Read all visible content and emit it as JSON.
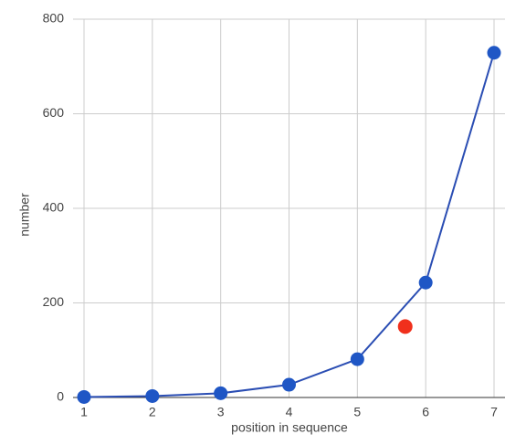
{
  "chart_data": {
    "type": "line",
    "x_label": "position in sequence",
    "y_label": "number",
    "x": [
      1,
      2,
      3,
      4,
      5,
      6,
      7
    ],
    "series": [
      {
        "color": "#1f56c5",
        "values": [
          1,
          3,
          9,
          27,
          81,
          243,
          729
        ]
      },
      {
        "color": "#f0301c",
        "x": [
          5.7
        ],
        "values": [
          150
        ]
      }
    ],
    "xlim": [
      1,
      7
    ],
    "xticks": [
      1,
      2,
      3,
      4,
      5,
      6,
      7
    ],
    "ylim": [
      0,
      800
    ],
    "yticks": [
      0,
      200,
      400,
      600,
      800
    ],
    "grid": true
  }
}
